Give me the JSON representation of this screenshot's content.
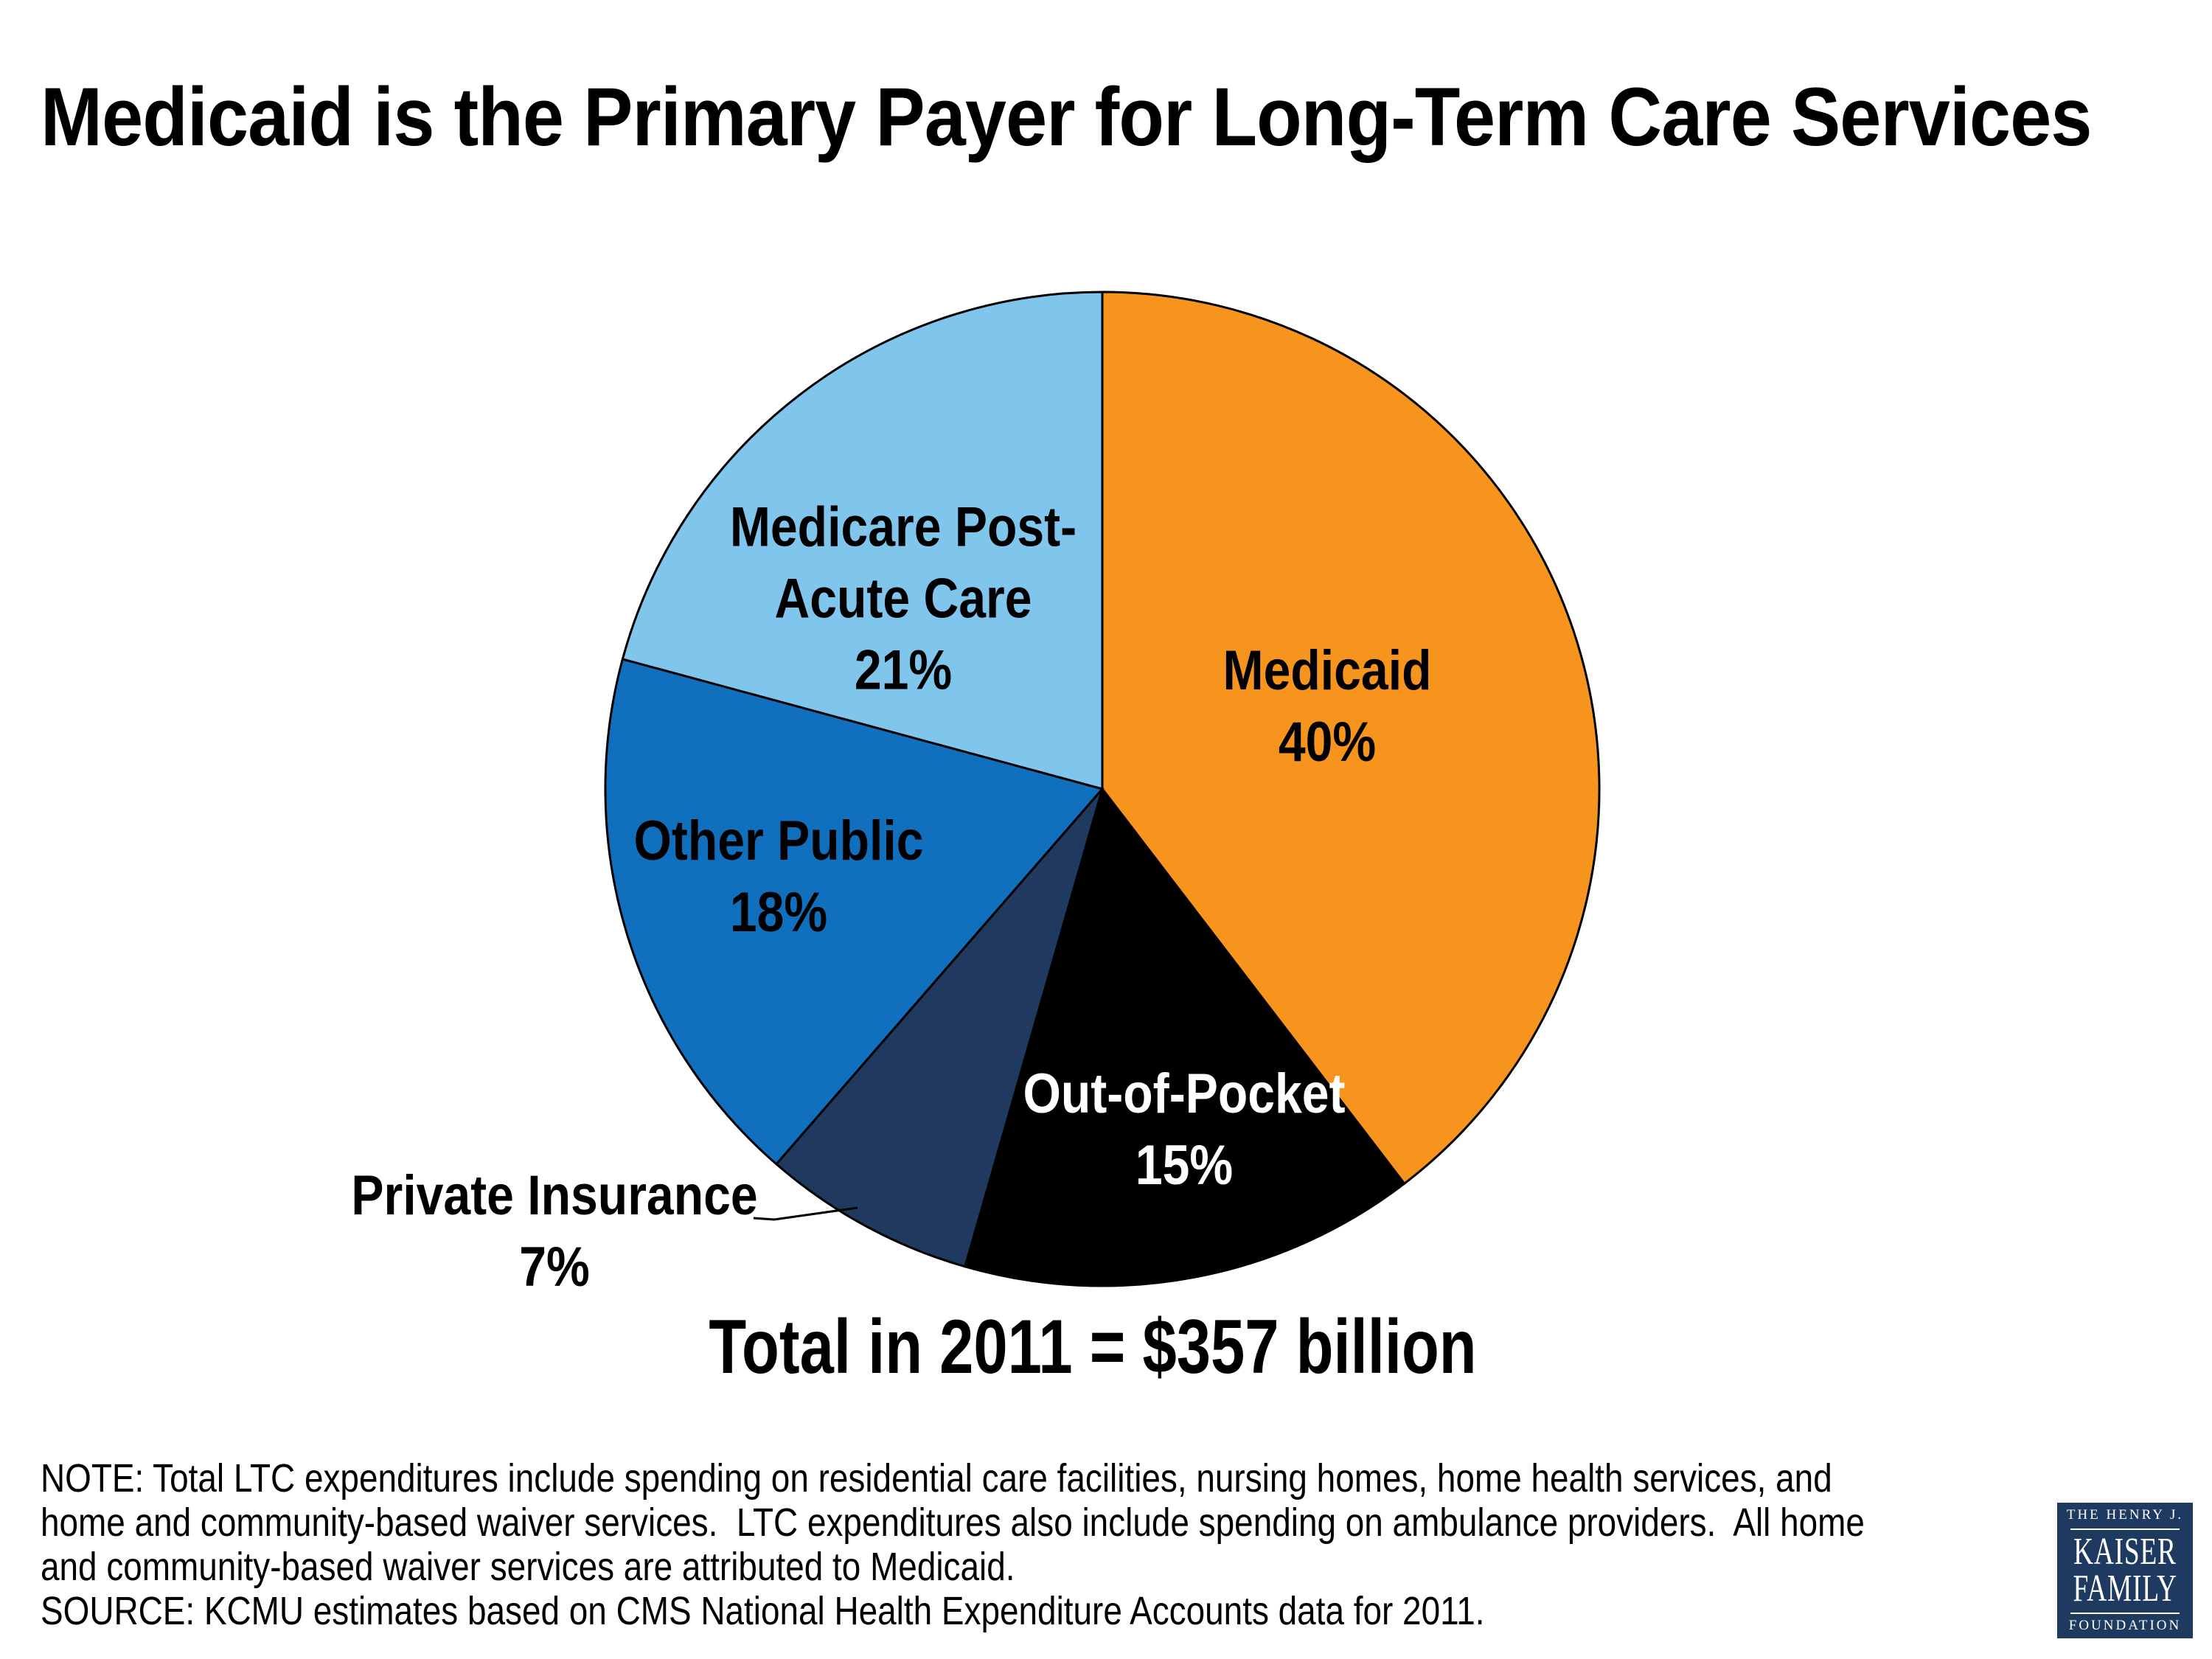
{
  "title": "Medicaid is the Primary Payer for Long-Term Care Services",
  "chart_data": {
    "type": "pie",
    "title": "Medicaid is the Primary Payer for Long-Term Care Services",
    "total_label": "Total in 2011 = $357 billion",
    "total_value": "$357 billion",
    "year": "2011",
    "unit": "%",
    "start_angle": "12 o'clock",
    "direction": "clockwise",
    "categories": [
      "Medicaid",
      "Out-of-Pocket",
      "Private Insurance",
      "Other Public",
      "Medicare Post-Acute Care"
    ],
    "values": [
      40,
      15,
      7,
      18,
      21
    ],
    "slices": [
      {
        "id": "medicaid",
        "name": "Medicaid",
        "value": 40,
        "color": "#F7941E",
        "text_color": "#000000",
        "label_lines": [
          "Medicaid",
          "40%"
        ]
      },
      {
        "id": "out-of-pocket",
        "name": "Out-of-Pocket",
        "value": 15,
        "color": "#000000",
        "text_color": "#FFFFFF",
        "label_lines": [
          "Out-of-Pocket",
          "15%"
        ]
      },
      {
        "id": "private-insurance",
        "name": "Private Insurance",
        "value": 7,
        "color": "#1F3A5E",
        "text_color": "#000000",
        "label_lines": [
          "Private Insurance",
          "7%"
        ],
        "label_outside": true
      },
      {
        "id": "other-public",
        "name": "Other Public",
        "value": 18,
        "color": "#1170BE",
        "text_color": "#000000",
        "label_lines": [
          "Other Public",
          "18%"
        ]
      },
      {
        "id": "medicare-post-acute",
        "name": "Medicare Post-Acute Care",
        "value": 21,
        "color": "#7FC5EC",
        "text_color": "#000000",
        "label_lines": [
          "Medicare Post-",
          "Acute Care",
          "21%"
        ]
      }
    ]
  },
  "total_label": "Total in 2011 = $357 billion",
  "note": {
    "lines": [
      "NOTE: Total LTC expenditures include spending on residential care facilities, nursing homes, home health services, and",
      "home and community-based waiver services.  LTC expenditures also include spending on ambulance providers.  All home",
      "and community-based waiver services are attributed to Medicaid."
    ],
    "source": "SOURCE: KCMU estimates based on CMS National Health Expenditure Accounts data for 2011."
  },
  "logo": {
    "top_text": "THE HENRY J.",
    "name_line1": "KAISER",
    "name_line2": "FAMILY",
    "bottom_text": "FOUNDATION",
    "background_color": "#1E3A60"
  }
}
